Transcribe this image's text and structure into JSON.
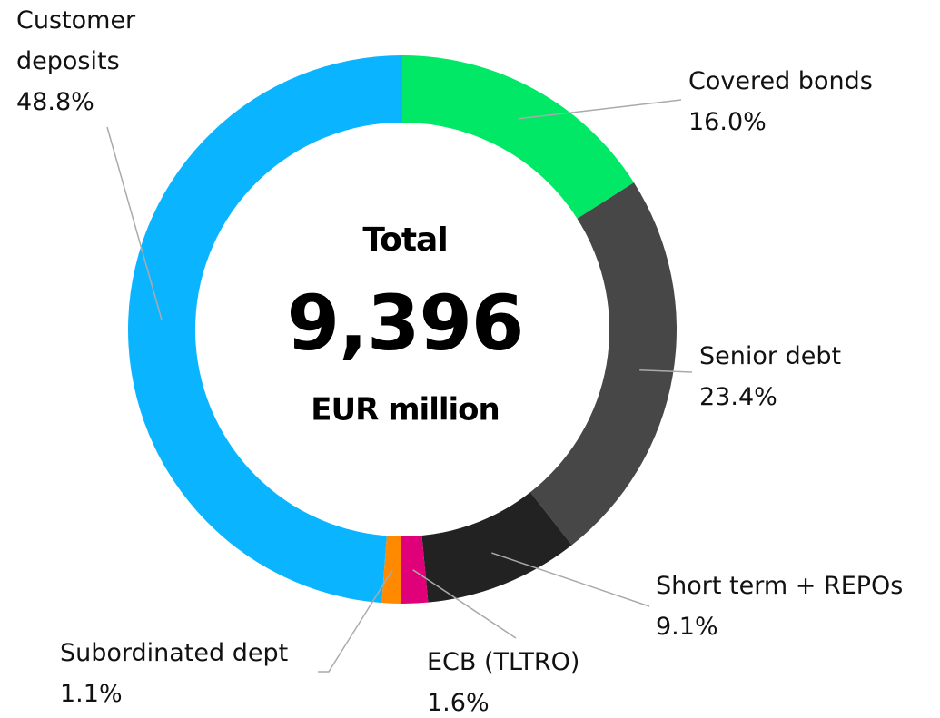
{
  "chart_data": {
    "type": "donut",
    "center_texts": [
      "Total",
      "9,396",
      "EUR million"
    ],
    "categories": [
      "Covered bonds",
      "Senior debt",
      "Short term + REPOs",
      "ECB (TLTRO)",
      "Subordinated dept",
      "Customer deposits"
    ],
    "values": [
      16.0,
      23.4,
      9.1,
      1.6,
      1.1,
      48.8
    ],
    "value_labels": [
      "16.0%",
      "23.4%",
      "9.1%",
      "1.6%",
      "1.1%",
      "48.8%"
    ],
    "colors": [
      "#00e865",
      "#474747",
      "#222222",
      "#e0007a",
      "#ff8a00",
      "#0bb4ff"
    ]
  }
}
